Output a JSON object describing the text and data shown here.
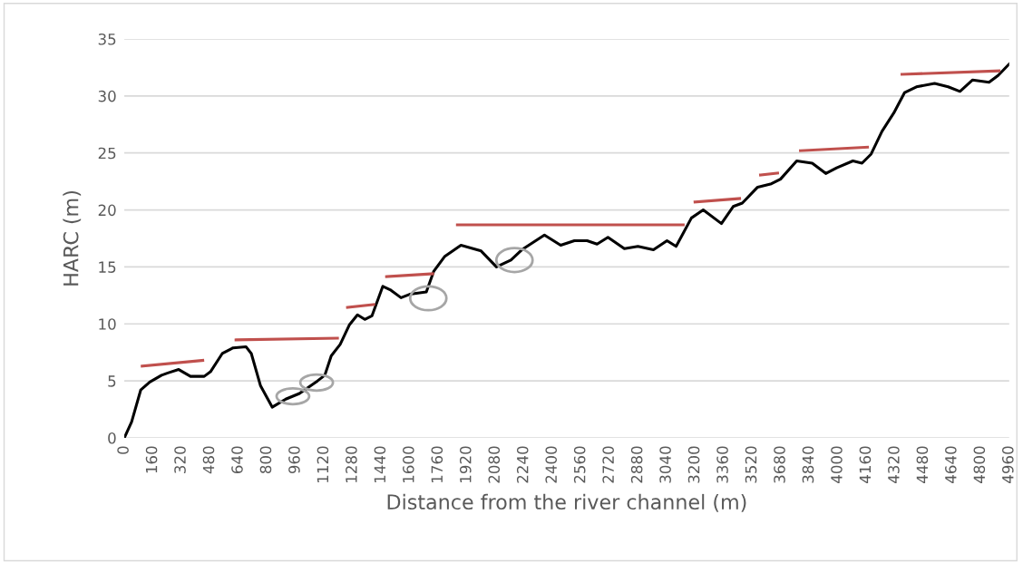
{
  "chart_data": {
    "type": "line",
    "xlabel": "Distance from the river channel (m)",
    "ylabel": "HARC (m)",
    "xlim": [
      0,
      4960
    ],
    "xticks": [
      0,
      160,
      320,
      480,
      640,
      800,
      960,
      1120,
      1280,
      1440,
      1600,
      1760,
      1920,
      2080,
      2240,
      2400,
      2560,
      2720,
      2880,
      3040,
      3200,
      3360,
      3520,
      3680,
      3840,
      4000,
      4160,
      4320,
      4480,
      4640,
      4800,
      4960
    ],
    "ylim": [
      0,
      35
    ],
    "yticks": [
      0,
      5,
      10,
      15,
      20,
      25,
      30,
      35
    ],
    "grid": "y",
    "marker": "none",
    "line_style": "solid",
    "series": [
      {
        "color": "#000000",
        "x": [
          0,
          41,
          92,
          143,
          209,
          244,
          305,
          371,
          448,
          483,
          549,
          610,
          682,
          712,
          763,
          829,
          905,
          982,
          1083,
          1124,
          1160,
          1210,
          1261,
          1307,
          1348,
          1388,
          1449,
          1490,
          1551,
          1600,
          1693,
          1734,
          1795,
          1887,
          2000,
          2086,
          2167,
          2228,
          2355,
          2446,
          2523,
          2594,
          2650,
          2711,
          2803,
          2879,
          2966,
          3042,
          3093,
          3179,
          3245,
          3347,
          3413,
          3464,
          3550,
          3627,
          3678,
          3769,
          3856,
          3932,
          3993,
          4084,
          4135,
          4186,
          4247,
          4313,
          4374,
          4440,
          4542,
          4618,
          4684,
          4755,
          4847,
          4898,
          4960
        ],
        "values": [
          0,
          1.4,
          4.2,
          4.9,
          5.5,
          5.7,
          6.0,
          5.4,
          5.4,
          5.8,
          7.4,
          7.9,
          8.0,
          7.4,
          4.6,
          2.7,
          3.4,
          3.9,
          5.0,
          5.5,
          7.2,
          8.2,
          9.9,
          10.8,
          10.4,
          10.7,
          13.3,
          13.0,
          12.3,
          12.6,
          12.8,
          14.6,
          15.9,
          16.9,
          16.4,
          15.0,
          15.6,
          16.5,
          17.8,
          16.9,
          17.3,
          17.3,
          17.0,
          17.6,
          16.6,
          16.8,
          16.5,
          17.3,
          16.8,
          19.3,
          20.0,
          18.8,
          20.3,
          20.6,
          22.0,
          22.3,
          22.7,
          24.3,
          24.1,
          23.2,
          23.7,
          24.3,
          24.1,
          24.9,
          26.9,
          28.5,
          30.3,
          30.8,
          31.1,
          30.8,
          30.4,
          31.4,
          31.2,
          31.8,
          32.8
        ]
      },
      {
        "color": "#c0504d",
        "x": [
          100,
          440
        ],
        "values": [
          6.3,
          6.8
        ]
      },
      {
        "color": "#c0504d",
        "x": [
          626,
          1195
        ],
        "values": [
          8.6,
          8.75
        ]
      },
      {
        "color": "#c0504d",
        "x": [
          1251,
          1398
        ],
        "values": [
          11.45,
          11.7
        ]
      },
      {
        "color": "#c0504d",
        "x": [
          1470,
          1729
        ],
        "values": [
          14.15,
          14.4
        ]
      },
      {
        "color": "#c0504d",
        "x": [
          1867,
          3133
        ],
        "values": [
          18.7,
          18.7
        ]
      },
      {
        "color": "#c0504d",
        "x": [
          3199,
          3449
        ],
        "values": [
          20.7,
          21.0
        ]
      },
      {
        "color": "#c0504d",
        "x": [
          3566,
          3662
        ],
        "values": [
          23.07,
          23.23
        ]
      },
      {
        "color": "#c0504d",
        "x": [
          3790,
          4166
        ],
        "values": [
          25.2,
          25.5
        ]
      },
      {
        "color": "#c0504d",
        "x": [
          4359,
          4903
        ],
        "values": [
          31.9,
          32.2
        ]
      }
    ]
  }
}
